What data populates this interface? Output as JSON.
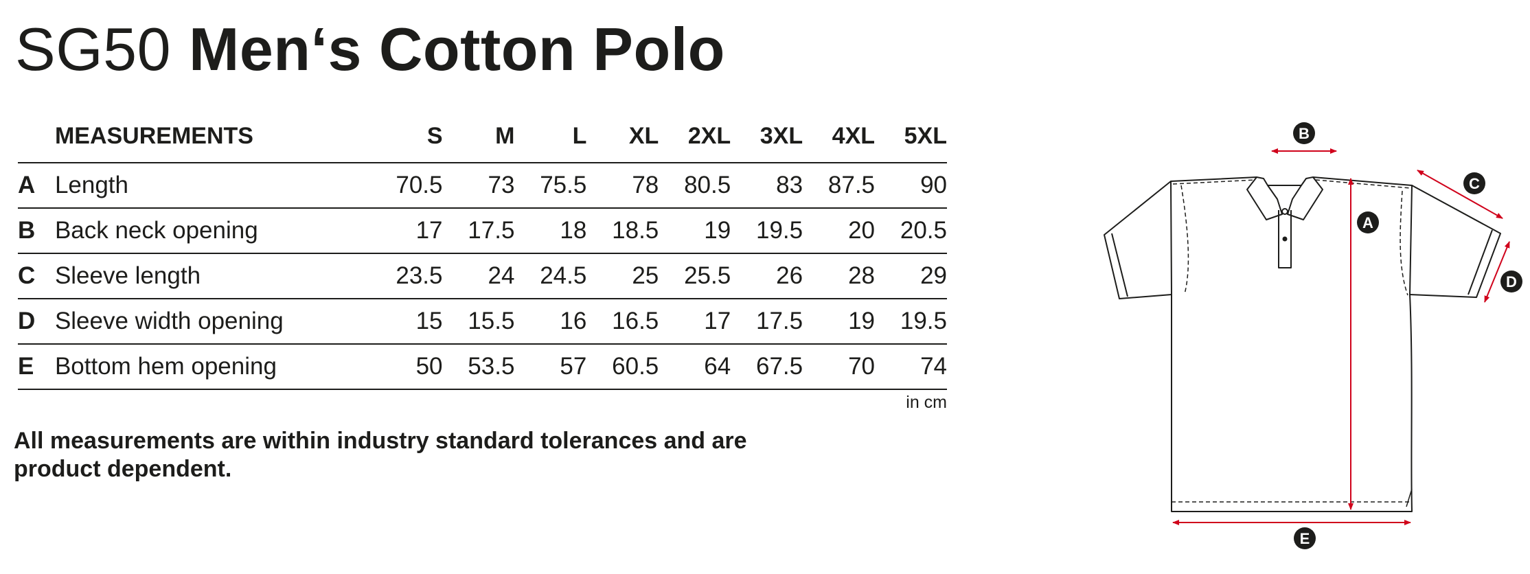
{
  "title": {
    "code": "SG50",
    "name": "Men‘s Cotton Polo"
  },
  "table": {
    "header_label": "MEASUREMENTS",
    "sizes": [
      "S",
      "M",
      "L",
      "XL",
      "2XL",
      "3XL",
      "4XL",
      "5XL"
    ],
    "rows": [
      {
        "letter": "A",
        "label": "Length",
        "values": [
          "70.5",
          "73",
          "75.5",
          "78",
          "80.5",
          "83",
          "87.5",
          "90"
        ]
      },
      {
        "letter": "B",
        "label": "Back neck opening",
        "values": [
          "17",
          "17.5",
          "18",
          "18.5",
          "19",
          "19.5",
          "20",
          "20.5"
        ]
      },
      {
        "letter": "C",
        "label": "Sleeve length",
        "values": [
          "23.5",
          "24",
          "24.5",
          "25",
          "25.5",
          "26",
          "28",
          "29"
        ]
      },
      {
        "letter": "D",
        "label": "Sleeve width opening",
        "values": [
          "15",
          "15.5",
          "16",
          "16.5",
          "17",
          "17.5",
          "19",
          "19.5"
        ]
      },
      {
        "letter": "E",
        "label": "Bottom hem opening",
        "values": [
          "50",
          "53.5",
          "57",
          "60.5",
          "64",
          "67.5",
          "70",
          "74"
        ]
      }
    ],
    "unit": "in cm"
  },
  "note": "All measurements are within industry standard tolerances and are product dependent.",
  "diagram": {
    "markers": [
      "A",
      "B",
      "C",
      "D",
      "E"
    ],
    "colors": {
      "line": "#1d1d1b",
      "measure": "#d0021b",
      "marker_fill": "#1d1d1b",
      "marker_text": "#ffffff"
    }
  }
}
